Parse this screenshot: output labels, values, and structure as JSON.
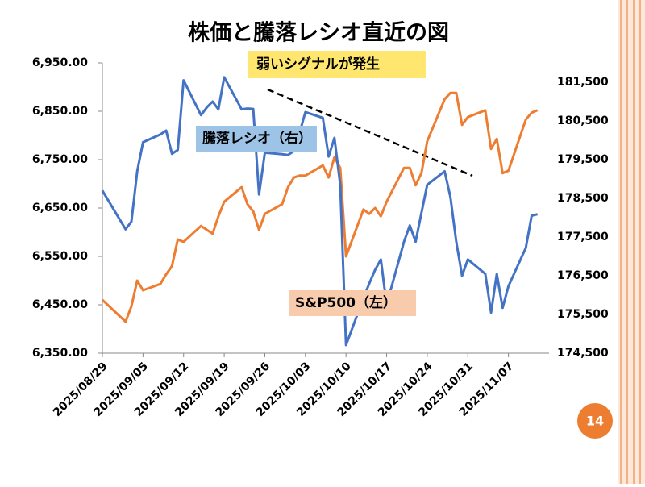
{
  "chart_data": {
    "type": "line",
    "title": "株価と騰落レシオ直近の図",
    "annotation": "弱いシグナルが発生",
    "x": [
      "2025/08/29",
      "2025/09/02",
      "2025/09/03",
      "2025/09/04",
      "2025/09/05",
      "2025/09/08",
      "2025/09/09",
      "2025/09/10",
      "2025/09/11",
      "2025/09/12",
      "2025/09/15",
      "2025/09/16",
      "2025/09/17",
      "2025/09/18",
      "2025/09/19",
      "2025/09/22",
      "2025/09/23",
      "2025/09/24",
      "2025/09/25",
      "2025/09/26",
      "2025/09/29",
      "2025/09/30",
      "2025/10/01",
      "2025/10/02",
      "2025/10/03",
      "2025/10/06",
      "2025/10/07",
      "2025/10/08",
      "2025/10/09",
      "2025/10/10",
      "2025/10/13",
      "2025/10/14",
      "2025/10/15",
      "2025/10/16",
      "2025/10/17",
      "2025/10/20",
      "2025/10/21",
      "2025/10/22",
      "2025/10/23",
      "2025/10/24",
      "2025/10/27",
      "2025/10/28",
      "2025/10/29",
      "2025/10/30",
      "2025/10/31",
      "2025/11/03",
      "2025/11/04",
      "2025/11/05",
      "2025/11/06",
      "2025/11/07",
      "2025/11/10",
      "2025/11/11",
      "2025/11/12"
    ],
    "xlim": [
      "2025/08/29",
      "2025/11/14"
    ],
    "xticks": [
      "2025/08/29",
      "2025/09/05",
      "2025/09/12",
      "2025/09/19",
      "2025/09/26",
      "2025/10/03",
      "2025/10/10",
      "2025/10/17",
      "2025/10/24",
      "2025/10/31",
      "2025/11/07"
    ],
    "series": [
      {
        "name": "S&P500（左）",
        "color": "#ED7D31",
        "values": [
          6460,
          6415,
          6447,
          6500,
          6480,
          6493,
          6513,
          6530,
          6585,
          6580,
          6613,
          6605,
          6597,
          6633,
          6663,
          6693,
          6658,
          6643,
          6605,
          6638,
          6658,
          6693,
          6713,
          6717,
          6717,
          6738,
          6713,
          6755,
          6733,
          6550,
          6647,
          6638,
          6650,
          6633,
          6663,
          6733,
          6733,
          6697,
          6722,
          6788,
          6875,
          6888,
          6888,
          6822,
          6838,
          6852,
          6772,
          6793,
          6722,
          6727,
          6833,
          6847,
          6852
        ]
      },
      {
        "name": "騰落レシオ（右）",
        "color": "#4472C4",
        "axis": "y2",
        "values": [
          178700,
          177700,
          177900,
          179200,
          179950,
          180150,
          180250,
          179650,
          179750,
          181550,
          180650,
          180850,
          181000,
          180800,
          181630,
          180800,
          180820,
          180810,
          178600,
          179680,
          179640,
          179620,
          179720,
          180200,
          180730,
          180580,
          179580,
          180060,
          178850,
          174710,
          175920,
          176300,
          176650,
          176920,
          175750,
          177380,
          177800,
          177380,
          178120,
          178850,
          179200,
          178530,
          177380,
          176500,
          176920,
          176550,
          175550,
          176550,
          175670,
          176230,
          177220,
          178050,
          178090
        ]
      }
    ],
    "ylim": [
      6350,
      6950
    ],
    "yticks": [
      {
        "value": 6350,
        "label": "6,350.00"
      },
      {
        "value": 6450,
        "label": "6,450.00"
      },
      {
        "value": 6550,
        "label": "6,550.00"
      },
      {
        "value": 6650,
        "label": "6,650.00"
      },
      {
        "value": 6750,
        "label": "6,750.00"
      },
      {
        "value": 6850,
        "label": "6,850.00"
      },
      {
        "value": 6950,
        "label": "6,950.00"
      }
    ],
    "y2lim": [
      174500,
      182000
    ],
    "y2ticks": [
      {
        "value": 174500,
        "label": "174,500"
      },
      {
        "value": 175500,
        "label": "175,500"
      },
      {
        "value": 176500,
        "label": "176,500"
      },
      {
        "value": 177500,
        "label": "177,500"
      },
      {
        "value": 178500,
        "label": "178,500"
      },
      {
        "value": 179500,
        "label": "179,500"
      },
      {
        "value": 180500,
        "label": "180,500"
      },
      {
        "value": 181500,
        "label": "181,500"
      }
    ],
    "grid": false
  },
  "slide": {
    "page_number": "14"
  }
}
